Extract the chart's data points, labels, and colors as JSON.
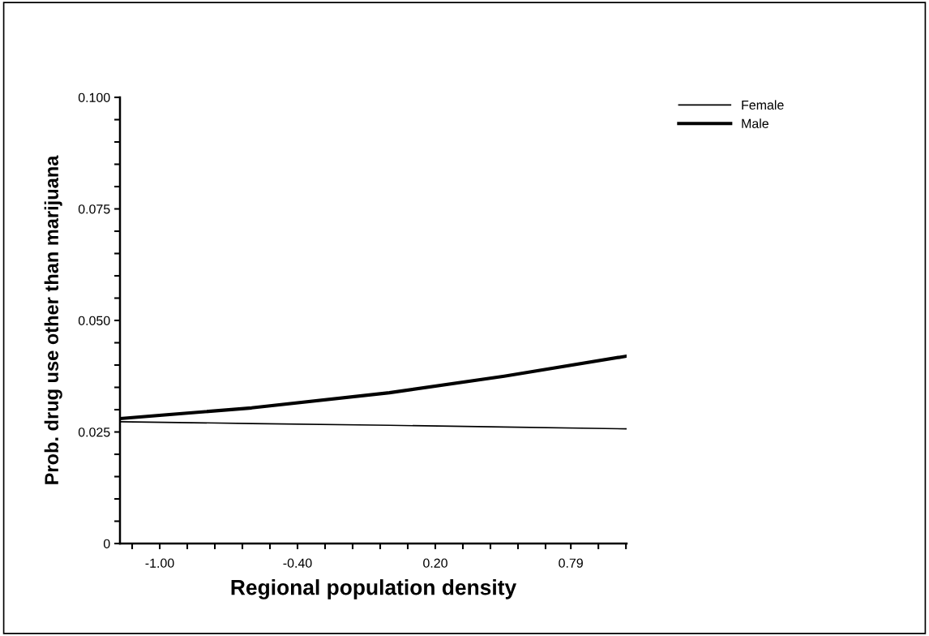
{
  "chart_data": {
    "type": "line",
    "xlabel": "Regional population density",
    "ylabel": "Prob. drug use other than marijuana",
    "xlim": [
      -1.173,
      1.033
    ],
    "ylim": [
      0,
      0.1
    ],
    "xticks": [
      {
        "value": -1.12,
        "label": null
      },
      {
        "value": -1.0,
        "label": "-1.00"
      },
      {
        "value": -0.88,
        "label": null
      },
      {
        "value": -0.76,
        "label": null
      },
      {
        "value": -0.64,
        "label": null
      },
      {
        "value": -0.52,
        "label": null
      },
      {
        "value": -0.4,
        "label": "-0.40"
      },
      {
        "value": -0.28,
        "label": null
      },
      {
        "value": -0.16,
        "label": null
      },
      {
        "value": -0.04,
        "label": null
      },
      {
        "value": 0.08,
        "label": null
      },
      {
        "value": 0.2,
        "label": "0.20"
      },
      {
        "value": 0.32,
        "label": null
      },
      {
        "value": 0.44,
        "label": null
      },
      {
        "value": 0.56,
        "label": null
      },
      {
        "value": 0.68,
        "label": null
      },
      {
        "value": 0.79,
        "label": "0.79"
      },
      {
        "value": 0.91,
        "label": null
      },
      {
        "value": 1.03,
        "label": null
      }
    ],
    "yticks": [
      0,
      {
        "value": 0.005,
        "label": null
      },
      {
        "value": 0.01,
        "label": null
      },
      {
        "value": 0.015,
        "label": null
      },
      {
        "value": 0.02,
        "label": null
      },
      0.025,
      {
        "value": 0.03,
        "label": null
      },
      {
        "value": 0.035,
        "label": null
      },
      {
        "value": 0.04,
        "label": null
      },
      {
        "value": 0.045,
        "label": null
      },
      {
        "value": 0.05,
        "label": "0.050"
      },
      {
        "value": 0.055,
        "label": null
      },
      {
        "value": 0.06,
        "label": null
      },
      {
        "value": 0.065,
        "label": null
      },
      {
        "value": 0.07,
        "label": null
      },
      0.075,
      {
        "value": 0.08,
        "label": null
      },
      {
        "value": 0.085,
        "label": null
      },
      {
        "value": 0.09,
        "label": null
      },
      {
        "value": 0.095,
        "label": null
      },
      {
        "value": 0.1,
        "label": "0.100"
      }
    ],
    "x": [
      -1.173,
      -0.6,
      0.0,
      0.5,
      1.033
    ],
    "legend": "top right",
    "grid": false,
    "series": [
      {
        "name": "Female",
        "color": "#000000",
        "values": [
          0.0273,
          0.0269,
          0.0265,
          0.0261,
          0.0257
        ]
      },
      {
        "name": "Male",
        "color": "#000000",
        "values": [
          0.028,
          0.0304,
          0.0338,
          0.0375,
          0.042
        ]
      }
    ]
  }
}
